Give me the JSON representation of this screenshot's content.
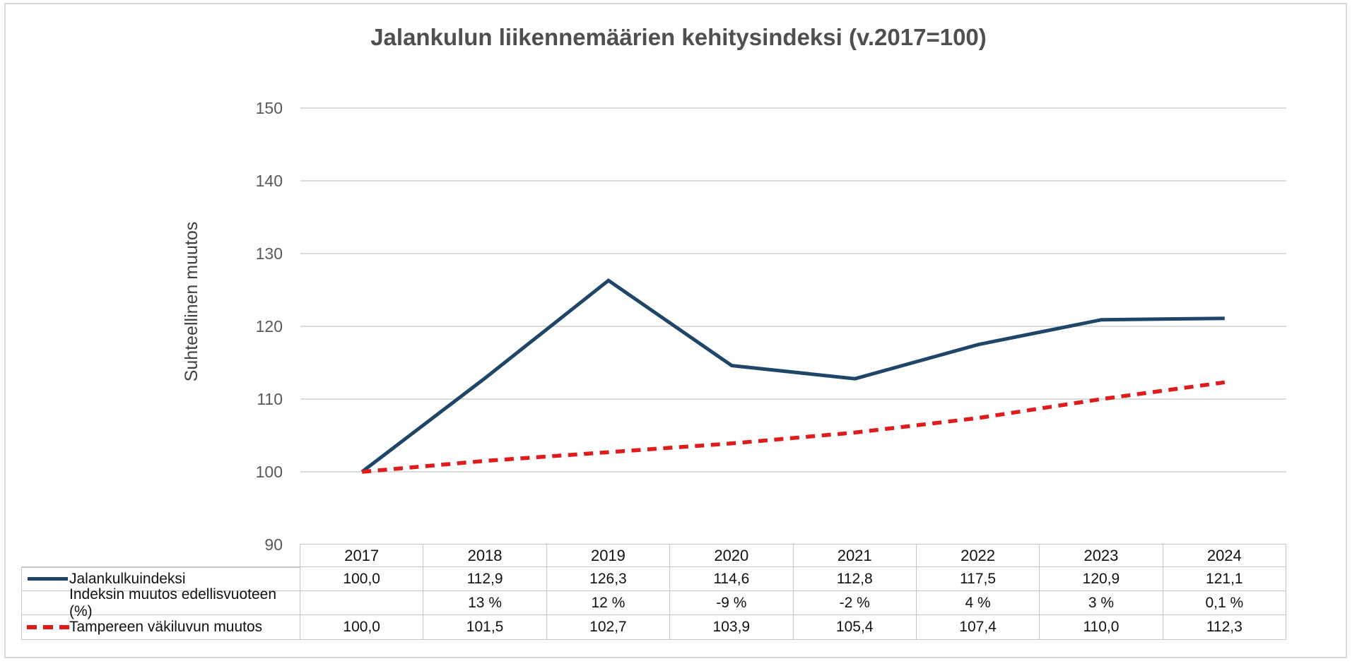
{
  "title": "Jalankulun liikennemäärien kehitysindeksi (v.2017=100)",
  "y_axis": {
    "label": "Suhteellinen muutos",
    "ticks": [
      150,
      140,
      130,
      120,
      110,
      100,
      90
    ]
  },
  "chart_data": {
    "type": "line",
    "title": "Jalankulun liikennemäärien kehitysindeksi (v.2017=100)",
    "xlabel": "",
    "ylabel": "Suhteellinen muutos",
    "categories": [
      "2017",
      "2018",
      "2019",
      "2020",
      "2021",
      "2022",
      "2023",
      "2024"
    ],
    "series": [
      {
        "name": "Jalankulkuindeksi",
        "values": [
          100.0,
          112.9,
          126.3,
          114.6,
          112.8,
          117.5,
          120.9,
          121.1
        ],
        "color": "#1F4569",
        "line_style": "solid"
      },
      {
        "name": "Tampereen väkiluvun muutos",
        "values": [
          100.0,
          101.5,
          102.7,
          103.9,
          105.4,
          107.4,
          110.0,
          112.3
        ],
        "color": "#E01B1B",
        "line_style": "dashed"
      }
    ],
    "ylim": [
      90,
      150
    ],
    "grid": true,
    "legend_position": "in-data-table-left-column"
  },
  "table": {
    "years": [
      "2017",
      "2018",
      "2019",
      "2020",
      "2021",
      "2022",
      "2023",
      "2024"
    ],
    "rows": [
      {
        "label": "Jalankulkuindeksi",
        "swatch": "solid-blue",
        "values": [
          "100,0",
          "112,9",
          "126,3",
          "114,6",
          "112,8",
          "117,5",
          "120,9",
          "121,1"
        ]
      },
      {
        "label": "Indeksin muutos edellisvuoteen (%)",
        "swatch": "none",
        "values": [
          "",
          "13 %",
          "12 %",
          "-9 %",
          "-2 %",
          "4 %",
          "3 %",
          "0,1 %"
        ]
      },
      {
        "label": "Tampereen väkiluvun muutos",
        "swatch": "dashed-red",
        "values": [
          "100,0",
          "101,5",
          "102,7",
          "103,9",
          "105,4",
          "107,4",
          "110,0",
          "112,3"
        ]
      }
    ]
  }
}
